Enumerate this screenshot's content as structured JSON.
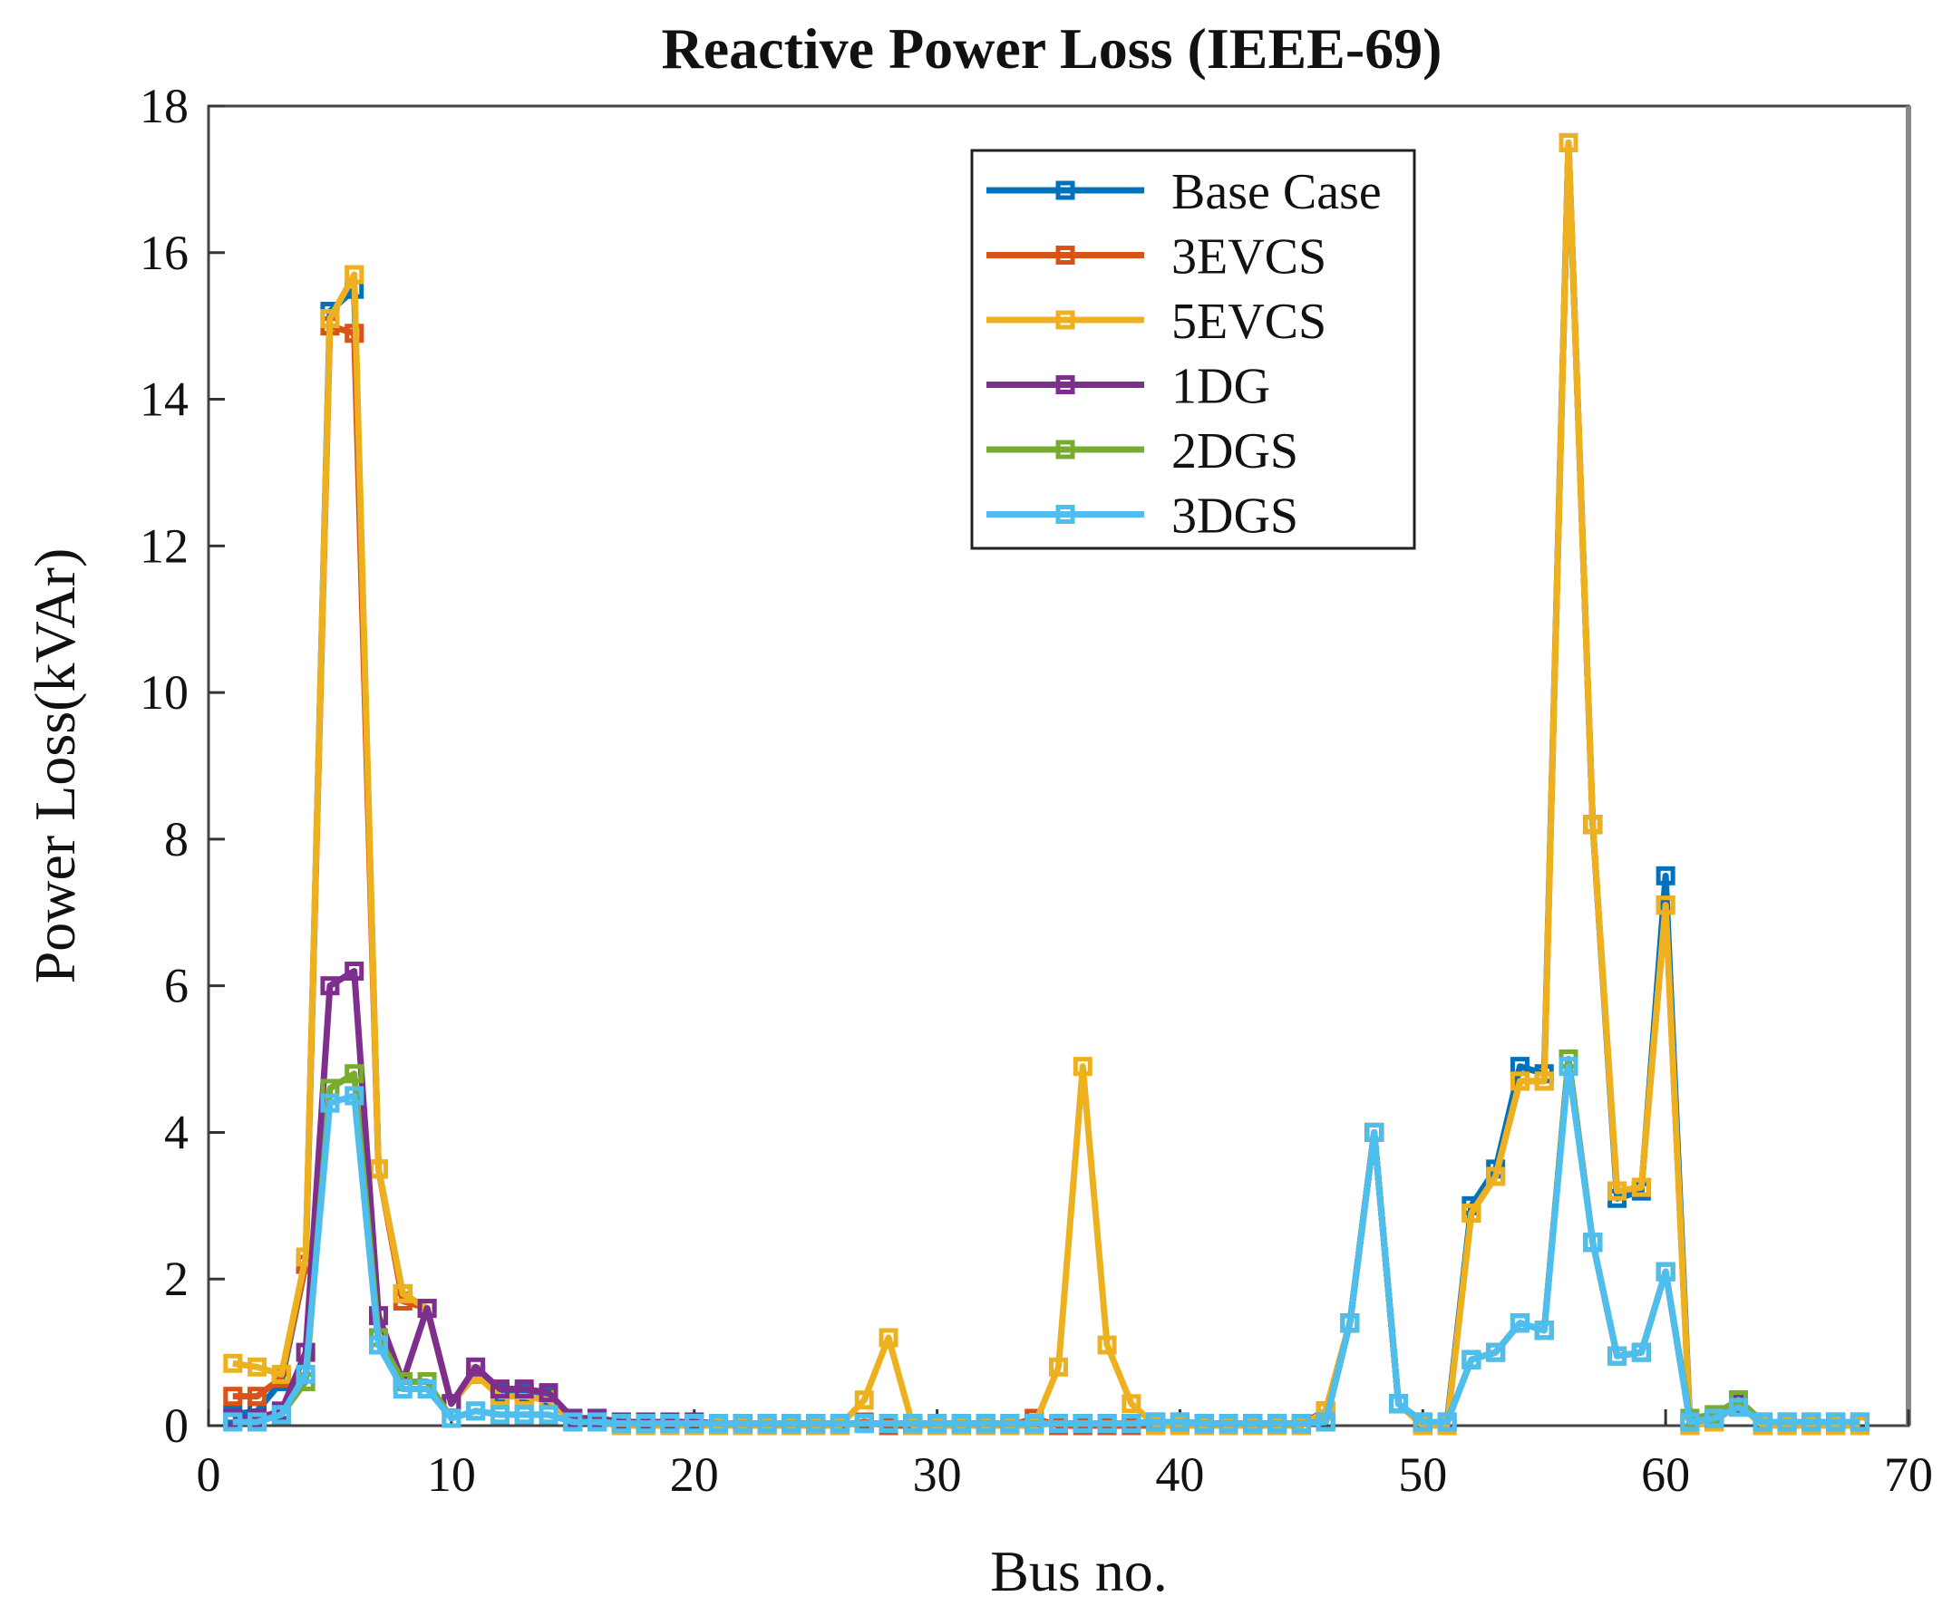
{
  "chart_data": {
    "type": "line",
    "title": "Reactive Power Loss (IEEE-69)",
    "xlabel": "Bus no.",
    "ylabel": "Power Loss(kVAr)",
    "xlim": [
      0,
      70
    ],
    "ylim": [
      0,
      18
    ],
    "xticks": [
      0,
      10,
      20,
      30,
      40,
      50,
      60,
      70
    ],
    "yticks": [
      0,
      2,
      4,
      6,
      8,
      10,
      12,
      14,
      16,
      18
    ],
    "grid": false,
    "legend_position": "top-right",
    "x": [
      1,
      2,
      3,
      4,
      5,
      6,
      7,
      8,
      9,
      10,
      11,
      12,
      13,
      14,
      15,
      16,
      17,
      18,
      19,
      20,
      21,
      22,
      23,
      24,
      25,
      26,
      27,
      28,
      29,
      30,
      31,
      32,
      33,
      34,
      35,
      36,
      37,
      38,
      39,
      40,
      41,
      42,
      43,
      44,
      45,
      46,
      47,
      48,
      49,
      50,
      51,
      52,
      53,
      54,
      55,
      56,
      57,
      58,
      59,
      60,
      61,
      62,
      63,
      64,
      65,
      66,
      67,
      68
    ],
    "series": [
      {
        "name": "Base Case",
        "color": "#0072BD",
        "values": [
          0.15,
          0.2,
          0.6,
          2.2,
          15.2,
          15.5,
          3.5,
          1.8,
          1.6,
          0.3,
          0.7,
          0.45,
          0.45,
          0.4,
          0.1,
          0.1,
          0.05,
          0.05,
          0.05,
          0.05,
          0.03,
          0.03,
          0.03,
          0.03,
          0.03,
          0.03,
          0.03,
          0.03,
          0.03,
          0.03,
          0.03,
          0.03,
          0.03,
          0.03,
          0.03,
          0.03,
          0.03,
          0.03,
          0.05,
          0.05,
          0.03,
          0.03,
          0.03,
          0.03,
          0.03,
          0.2,
          1.4,
          4.0,
          0.3,
          0.05,
          0.05,
          3.0,
          3.5,
          4.9,
          4.8,
          17.5,
          8.2,
          3.1,
          3.2,
          7.5,
          0.05,
          0.1,
          0.35,
          0.05,
          0.05,
          0.05,
          0.05,
          0.05
        ]
      },
      {
        "name": "3EVCS",
        "color": "#D95319",
        "values": [
          0.4,
          0.4,
          0.65,
          2.2,
          15.0,
          14.9,
          3.5,
          1.7,
          1.6,
          0.3,
          0.7,
          0.4,
          0.4,
          0.35,
          0.05,
          0.05,
          0.0,
          0.0,
          0.0,
          0.0,
          0.0,
          0.0,
          0.0,
          0.0,
          0.0,
          0.0,
          0.05,
          0.0,
          0.0,
          0.0,
          0.0,
          0.0,
          0.0,
          0.1,
          0.0,
          0.0,
          0.0,
          0.0,
          0.0,
          0.0,
          0.0,
          0.0,
          0.0,
          0.0,
          0.0,
          0.2,
          1.4,
          4.0,
          0.3,
          0.0,
          0.0,
          2.9,
          3.4,
          4.7,
          4.7,
          17.5,
          8.2,
          3.2,
          3.25,
          7.1,
          0.0,
          0.05,
          0.3,
          0.0,
          0.0,
          0.0,
          0.0,
          0.0
        ]
      },
      {
        "name": "5EVCS",
        "color": "#EDB120",
        "values": [
          0.85,
          0.8,
          0.7,
          2.3,
          15.1,
          15.7,
          3.5,
          1.8,
          1.6,
          0.3,
          0.7,
          0.4,
          0.4,
          0.35,
          0.05,
          0.05,
          0.0,
          0.0,
          0.0,
          0.0,
          0.0,
          0.0,
          0.0,
          0.0,
          0.0,
          0.0,
          0.35,
          1.2,
          0.0,
          0.0,
          0.0,
          0.0,
          0.0,
          0.0,
          0.8,
          4.9,
          1.1,
          0.3,
          0.0,
          0.0,
          0.0,
          0.0,
          0.0,
          0.0,
          0.0,
          0.2,
          1.4,
          4.0,
          0.3,
          0.0,
          0.0,
          2.9,
          3.4,
          4.7,
          4.7,
          17.5,
          8.2,
          3.2,
          3.25,
          7.1,
          0.0,
          0.05,
          0.3,
          0.0,
          0.0,
          0.0,
          0.0,
          0.0
        ]
      },
      {
        "name": "1DG",
        "color": "#7E2F8E",
        "values": [
          0.1,
          0.1,
          0.2,
          1.0,
          6.0,
          6.2,
          1.5,
          0.6,
          1.6,
          0.3,
          0.8,
          0.5,
          0.5,
          0.45,
          0.1,
          0.1,
          0.05,
          0.05,
          0.05,
          0.05,
          0.03,
          0.03,
          0.03,
          0.03,
          0.03,
          0.03,
          0.03,
          0.03,
          0.03,
          0.03,
          0.03,
          0.03,
          0.03,
          0.03,
          0.03,
          0.03,
          0.03,
          0.03,
          0.05,
          0.05,
          0.03,
          0.03,
          0.03,
          0.03,
          0.03,
          0.05,
          1.4,
          4.0,
          0.3,
          0.05,
          0.05,
          0.9,
          1.0,
          1.4,
          1.3,
          5.0,
          2.5,
          0.95,
          1.0,
          2.1,
          0.05,
          0.1,
          0.3,
          0.05,
          0.05,
          0.05,
          0.05,
          0.05
        ]
      },
      {
        "name": "2DGS",
        "color": "#77AC30",
        "values": [
          0.05,
          0.05,
          0.15,
          0.6,
          4.6,
          4.8,
          1.2,
          0.6,
          0.6,
          0.1,
          0.2,
          0.15,
          0.15,
          0.15,
          0.05,
          0.05,
          0.03,
          0.03,
          0.03,
          0.03,
          0.03,
          0.03,
          0.03,
          0.03,
          0.03,
          0.03,
          0.03,
          0.03,
          0.03,
          0.03,
          0.03,
          0.03,
          0.03,
          0.03,
          0.03,
          0.03,
          0.03,
          0.03,
          0.05,
          0.05,
          0.03,
          0.03,
          0.03,
          0.03,
          0.03,
          0.05,
          1.4,
          4.0,
          0.3,
          0.05,
          0.05,
          0.9,
          1.0,
          1.4,
          1.3,
          5.0,
          2.5,
          0.95,
          1.0,
          2.1,
          0.1,
          0.15,
          0.35,
          0.05,
          0.05,
          0.05,
          0.05,
          0.05
        ]
      },
      {
        "name": "3DGS",
        "color": "#4DBEEE",
        "values": [
          0.05,
          0.05,
          0.15,
          0.7,
          4.4,
          4.5,
          1.1,
          0.5,
          0.5,
          0.1,
          0.2,
          0.15,
          0.15,
          0.15,
          0.05,
          0.05,
          0.03,
          0.03,
          0.03,
          0.03,
          0.03,
          0.03,
          0.03,
          0.03,
          0.03,
          0.03,
          0.03,
          0.03,
          0.03,
          0.03,
          0.03,
          0.03,
          0.03,
          0.03,
          0.03,
          0.03,
          0.03,
          0.03,
          0.05,
          0.05,
          0.03,
          0.03,
          0.03,
          0.03,
          0.03,
          0.05,
          1.4,
          4.0,
          0.3,
          0.05,
          0.05,
          0.9,
          1.0,
          1.4,
          1.3,
          4.9,
          2.5,
          0.95,
          1.0,
          2.1,
          0.05,
          0.1,
          0.25,
          0.05,
          0.05,
          0.05,
          0.05,
          0.05
        ]
      }
    ]
  }
}
